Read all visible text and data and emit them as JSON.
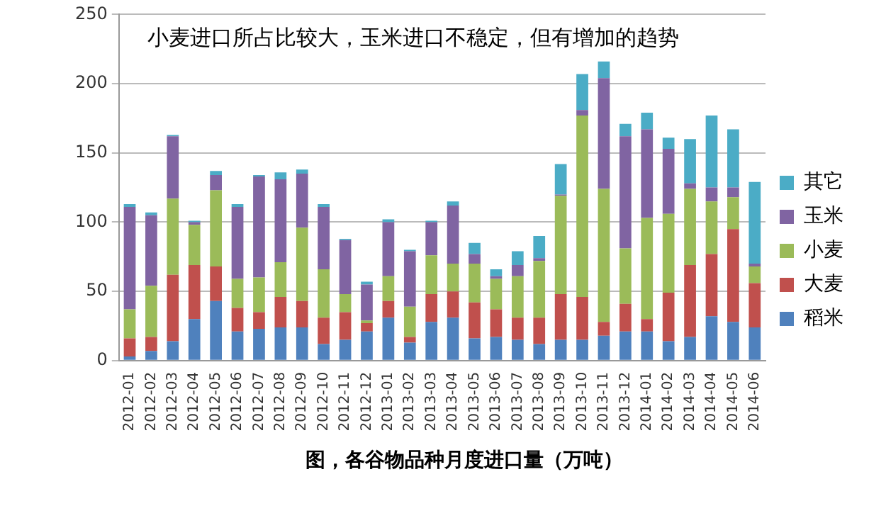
{
  "chart_data": {
    "type": "bar",
    "stacked": true,
    "title": "图，各谷物品种月度进口量（万吨）",
    "annotations": [
      "小麦进口所占比较大，玉米进口不稳定，但有增加的趋势"
    ],
    "categories": [
      "2012-01",
      "2012-02",
      "2012-03",
      "2012-04",
      "2012-05",
      "2012-06",
      "2012-07",
      "2012-08",
      "2012-09",
      "2012-10",
      "2012-11",
      "2012-12",
      "2013-01",
      "2013-02",
      "2013-03",
      "2013-04",
      "2013-05",
      "2013-06",
      "2013-07",
      "2013-08",
      "2013-09",
      "2013-10",
      "2013-11",
      "2013-12",
      "2014-01",
      "2014-02",
      "2014-03",
      "2014-04",
      "2014-05",
      "2014-06"
    ],
    "series": [
      {
        "name": "稻米",
        "color": "#4f81bd",
        "values": [
          3,
          7,
          14,
          30,
          43,
          21,
          23,
          24,
          24,
          12,
          15,
          21,
          31,
          13,
          28,
          31,
          16,
          17,
          15,
          12,
          15,
          15,
          18,
          21,
          21,
          14,
          17,
          32,
          28,
          24
        ]
      },
      {
        "name": "大麦",
        "color": "#c0504d",
        "values": [
          13,
          10,
          48,
          39,
          25,
          17,
          12,
          22,
          19,
          19,
          20,
          6,
          12,
          4,
          20,
          19,
          26,
          20,
          16,
          19,
          33,
          31,
          10,
          20,
          9,
          35,
          52,
          45,
          67,
          32
        ]
      },
      {
        "name": "小麦",
        "color": "#9bbb59",
        "values": [
          21,
          37,
          55,
          29,
          55,
          21,
          25,
          25,
          53,
          35,
          13,
          2,
          18,
          22,
          28,
          20,
          28,
          22,
          30,
          41,
          71,
          131,
          96,
          40,
          73,
          57,
          55,
          38,
          23,
          12
        ]
      },
      {
        "name": "玉米",
        "color": "#8064a2",
        "values": [
          74,
          51,
          45,
          2,
          11,
          52,
          73,
          60,
          39,
          45,
          39,
          26,
          39,
          40,
          24,
          42,
          7,
          2,
          8,
          2,
          1,
          4,
          80,
          81,
          64,
          47,
          4,
          10,
          7,
          2
        ]
      },
      {
        "name": "其它",
        "color": "#4bacc6",
        "values": [
          2,
          2,
          1,
          1,
          3,
          2,
          1,
          5,
          3,
          2,
          1,
          2,
          2,
          1,
          1,
          3,
          8,
          5,
          10,
          16,
          22,
          26,
          12,
          9,
          12,
          8,
          32,
          52,
          42,
          59
        ]
      }
    ],
    "ylim": [
      0,
      250
    ],
    "yticks": [
      0,
      50,
      100,
      150,
      200,
      250
    ],
    "grid": "y",
    "legend": "right"
  }
}
